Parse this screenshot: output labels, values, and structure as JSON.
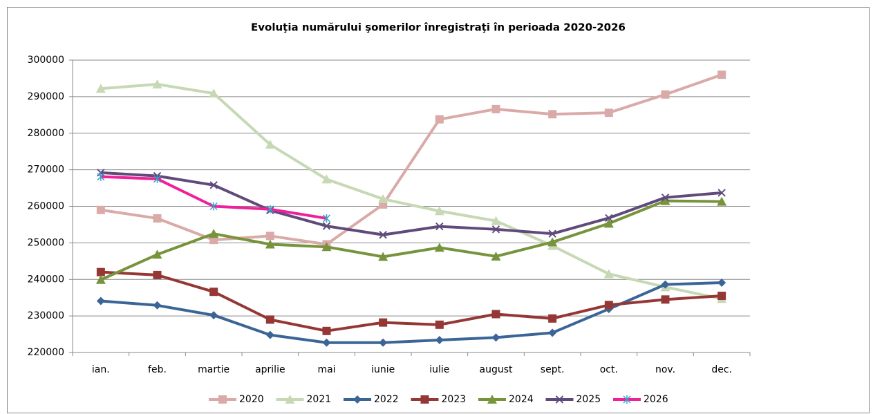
{
  "chart_data": {
    "type": "line",
    "title": "Evoluţia numărului  şomerilor înregistraţi în perioada 2020-2026",
    "categories": [
      "ian.",
      "feb.",
      "martie",
      "aprilie",
      "mai",
      "iunie",
      "iulie",
      "august",
      "sept.",
      "oct.",
      "nov.",
      "dec."
    ],
    "ylim": [
      220000,
      300000
    ],
    "yticks": [
      220000,
      230000,
      240000,
      250000,
      260000,
      270000,
      280000,
      290000,
      300000
    ],
    "grid": true,
    "legend": "bottom",
    "series": [
      {
        "name": "2020",
        "color": "#d9aaa7",
        "marker": "square",
        "values": [
          259000,
          256700,
          250800,
          251900,
          249600,
          260500,
          283800,
          286600,
          285200,
          285600,
          290600,
          296000
        ]
      },
      {
        "name": "2021",
        "color": "#c6d8b4",
        "marker": "triangle",
        "values": [
          292200,
          293400,
          290900,
          276900,
          267400,
          262000,
          258700,
          256000,
          249200,
          241500,
          237900,
          234700
        ]
      },
      {
        "name": "2022",
        "color": "#3a6596",
        "marker": "diamond",
        "values": [
          234100,
          232900,
          230200,
          224800,
          222700,
          222700,
          223400,
          224100,
          225400,
          231900,
          238600,
          239100
        ]
      },
      {
        "name": "2023",
        "color": "#953735",
        "marker": "square",
        "values": [
          242000,
          241200,
          236600,
          229000,
          225900,
          228200,
          227600,
          230500,
          229300,
          233000,
          234500,
          235500
        ]
      },
      {
        "name": "2024",
        "color": "#77933c",
        "marker": "triangle",
        "values": [
          239900,
          246800,
          252500,
          249600,
          248900,
          246200,
          248700,
          246300,
          250200,
          255300,
          261500,
          261300
        ]
      },
      {
        "name": "2025",
        "color": "#604a7b",
        "marker": "x",
        "values": [
          269200,
          268300,
          265800,
          258900,
          254600,
          252200,
          254500,
          253700,
          252500,
          256800,
          262400,
          263700
        ]
      },
      {
        "name": "2026",
        "color": "#f0209a",
        "marker": "asterisk",
        "values": [
          268100,
          267500,
          260000,
          259200,
          256700,
          null,
          null,
          null,
          null,
          null,
          null,
          null
        ]
      }
    ]
  }
}
